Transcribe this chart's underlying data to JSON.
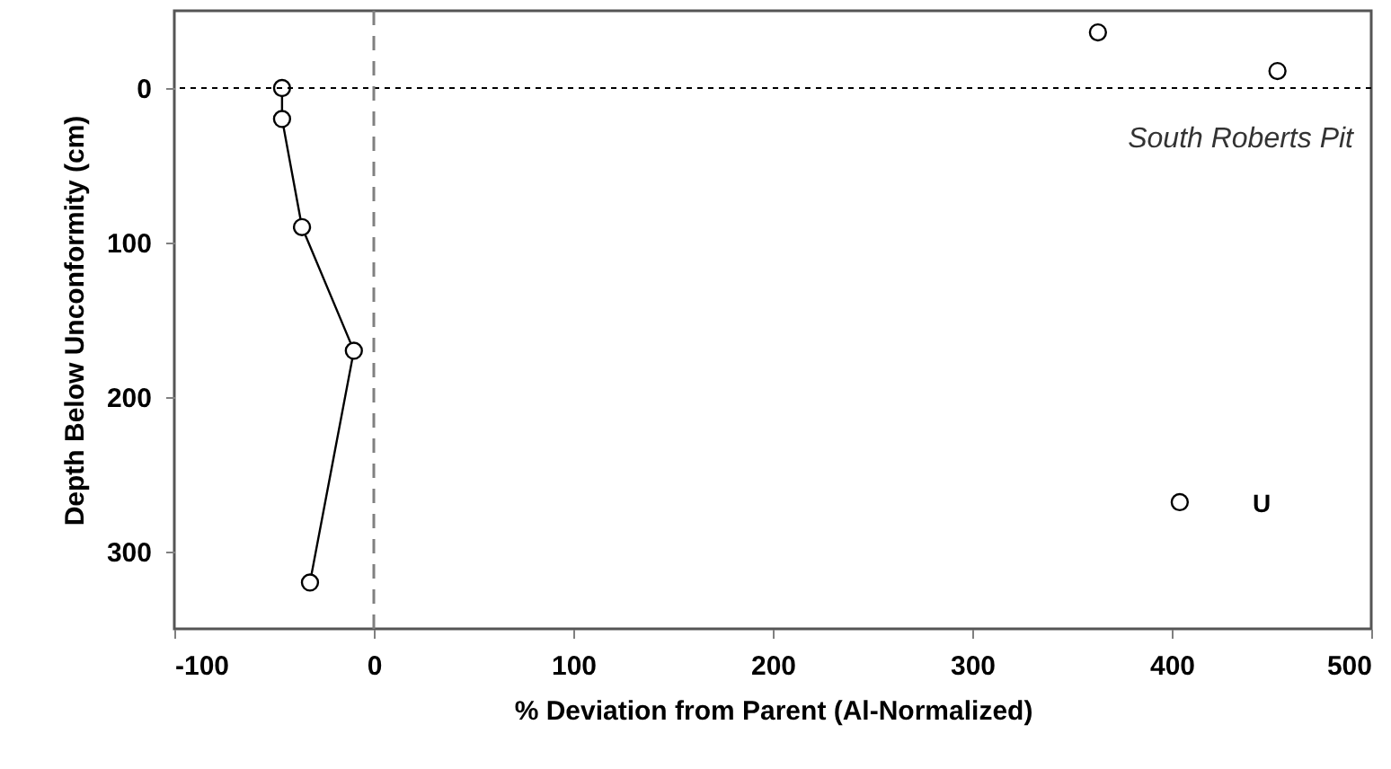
{
  "chart_data": {
    "type": "line",
    "xlabel": "% Deviation from Parent (Al-Normalized)",
    "ylabel": "Depth Below Unconformity (cm)",
    "series": [
      {
        "color": "#000000",
        "x": [
          -46,
          -46,
          -36,
          -10,
          -32
        ],
        "values": [
          0,
          20,
          90,
          170,
          320
        ],
        "marker": "circle"
      },
      {
        "type": "scatter",
        "color": "#000000",
        "x": [
          363,
          453,
          404
        ],
        "values": [
          -36,
          -11,
          268
        ],
        "marker": "circle"
      }
    ],
    "xlim": [
      -100,
      500
    ],
    "xticks": [
      -100,
      0,
      100,
      200,
      300,
      400,
      500
    ],
    "ylim": [
      350,
      -50
    ],
    "yticks": [
      0,
      100,
      200,
      300
    ],
    "ref_lines": [
      {
        "axis": "y",
        "value": 0,
        "color": "#000000",
        "line_style": "dotted"
      },
      {
        "axis": "x",
        "value": 0,
        "color": "#808080",
        "line_style": "dashed"
      }
    ],
    "annotations": [
      "South Roberts Pit",
      "U"
    ],
    "grid": false
  }
}
